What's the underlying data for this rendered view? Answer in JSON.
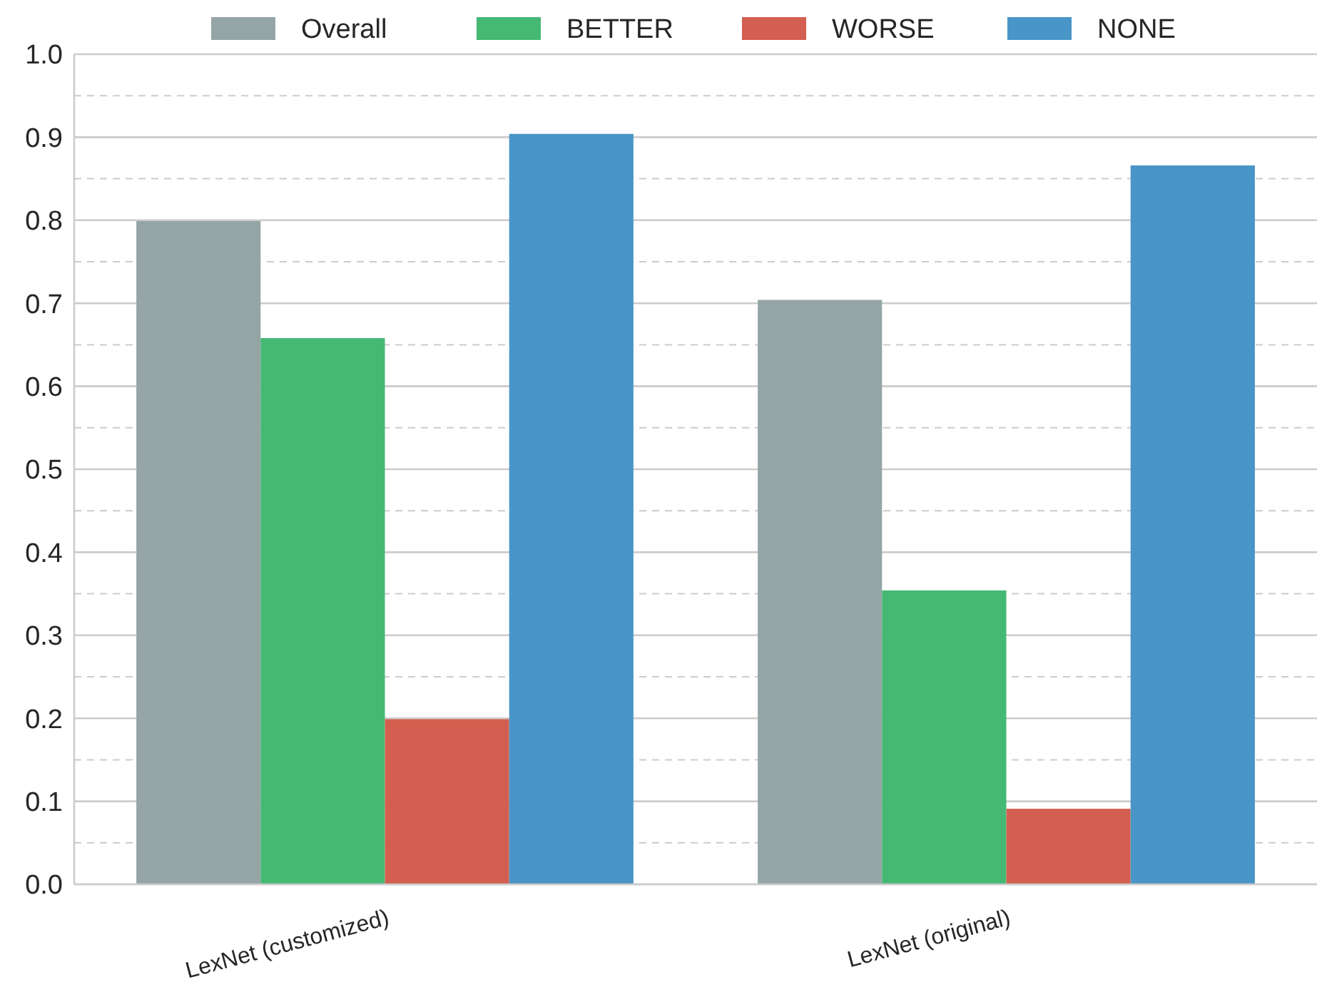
{
  "chart_data": {
    "type": "bar",
    "categories": [
      "LexNet (customized)",
      "LexNet (original)"
    ],
    "series": [
      {
        "name": "Overall",
        "color": "#95a5a6",
        "values": [
          0.799,
          0.704
        ]
      },
      {
        "name": "BETTER",
        "color": "#45b874",
        "values": [
          0.658,
          0.354
        ]
      },
      {
        "name": "WORSE",
        "color": "#d35f50",
        "values": [
          0.199,
          0.091
        ]
      },
      {
        "name": "NONE",
        "color": "#4a95c7",
        "values": [
          0.904,
          0.866
        ]
      }
    ],
    "ylim": [
      0,
      1
    ],
    "yticks": [
      {
        "value": 0,
        "label": "0.0"
      },
      {
        "value": 0.05,
        "label": null
      },
      {
        "value": 0.1,
        "label": "0.1"
      },
      {
        "value": 0.15,
        "label": null
      },
      {
        "value": 0.2,
        "label": "0.2"
      },
      {
        "value": 0.25,
        "label": null
      },
      {
        "value": 0.3,
        "label": "0.3"
      },
      {
        "value": 0.35,
        "label": null
      },
      {
        "value": 0.4,
        "label": "0.4"
      },
      {
        "value": 0.45,
        "label": null
      },
      {
        "value": 0.5,
        "label": "0.5"
      },
      {
        "value": 0.55,
        "label": null
      },
      {
        "value": 0.6,
        "label": "0.6"
      },
      {
        "value": 0.65,
        "label": null
      },
      {
        "value": 0.7,
        "label": "0.7"
      },
      {
        "value": 0.75,
        "label": null
      },
      {
        "value": 0.8,
        "label": "0.8"
      },
      {
        "value": 0.85,
        "label": null
      },
      {
        "value": 0.9,
        "label": "0.9"
      },
      {
        "value": 0.95,
        "label": null
      },
      {
        "value": 1,
        "label": "1.0"
      }
    ],
    "grid": "y",
    "legend": "top"
  }
}
